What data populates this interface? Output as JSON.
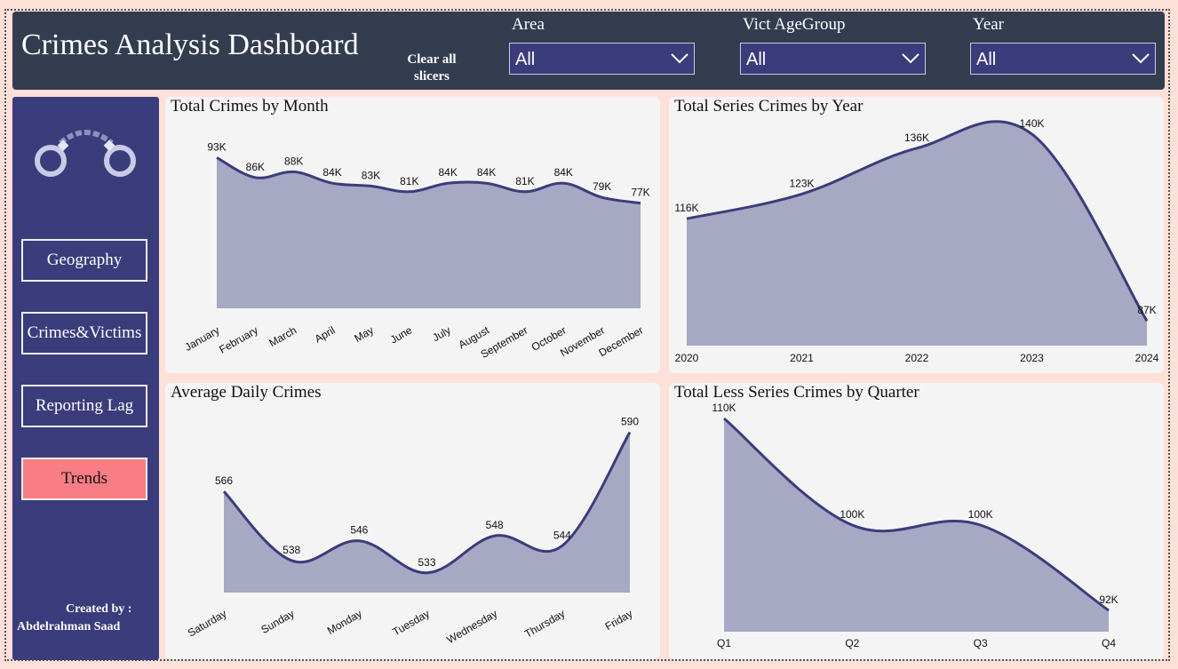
{
  "header": {
    "title": "Crimes Analysis Dashboard",
    "clear_label": "Clear all slicers",
    "slicers": [
      {
        "label": "Area",
        "value": "All"
      },
      {
        "label": "Vict AgeGroup",
        "value": "All"
      },
      {
        "label": "Year",
        "value": "All"
      }
    ]
  },
  "sidebar": {
    "logo_icon": "handcuffs-icon",
    "nav": [
      {
        "label": "Geography",
        "active": false
      },
      {
        "label": "Crimes&Victims",
        "active": false
      },
      {
        "label": "Reporting Lag",
        "active": false
      },
      {
        "label": "Trends",
        "active": true
      }
    ],
    "credit_line1": "Created by :",
    "credit_line2": "Abdelrahman Saad"
  },
  "colors": {
    "line": "#3b3c7c",
    "area": "#a7a8c4",
    "active_nav": "#f97d84"
  },
  "chart_data": [
    {
      "type": "area",
      "title": "Total Crimes by Month",
      "categories": [
        "January",
        "February",
        "March",
        "April",
        "May",
        "June",
        "July",
        "August",
        "September",
        "October",
        "November",
        "December"
      ],
      "values": [
        93000,
        86000,
        88000,
        84000,
        83000,
        81000,
        84000,
        84000,
        81000,
        84000,
        79000,
        77000
      ],
      "data_labels": [
        "93K",
        "86K",
        "88K",
        "84K",
        "83K",
        "81K",
        "84K",
        "84K",
        "81K",
        "84K",
        "79K",
        "77K"
      ],
      "ylim": [
        40000,
        95000
      ]
    },
    {
      "type": "area",
      "title": "Total Series Crimes by Year",
      "categories": [
        "2020",
        "2021",
        "2022",
        "2023",
        "2024"
      ],
      "values": [
        116000,
        123000,
        136000,
        140000,
        87000
      ],
      "data_labels": [
        "116K",
        "123K",
        "136K",
        "140K",
        "87K"
      ],
      "ylim": [
        80000,
        141000
      ]
    },
    {
      "type": "area",
      "title": "Average Daily Crimes",
      "categories": [
        "Saturday",
        "Sunday",
        "Monday",
        "Tuesday",
        "Wednesday",
        "Thursday",
        "Friday"
      ],
      "values": [
        566,
        538,
        546,
        533,
        548,
        544,
        590
      ],
      "data_labels": [
        "566",
        "538",
        "546",
        "533",
        "548",
        "544",
        "590"
      ],
      "ylim": [
        525,
        592
      ]
    },
    {
      "type": "area",
      "title": "Total Less Series Crimes by Quarter",
      "categories": [
        "Q1",
        "Q2",
        "Q3",
        "Q4"
      ],
      "values": [
        110000,
        100000,
        100000,
        92000
      ],
      "data_labels": [
        "110K",
        "100K",
        "100K",
        "92K"
      ],
      "ylim": [
        90000,
        110000
      ]
    }
  ]
}
